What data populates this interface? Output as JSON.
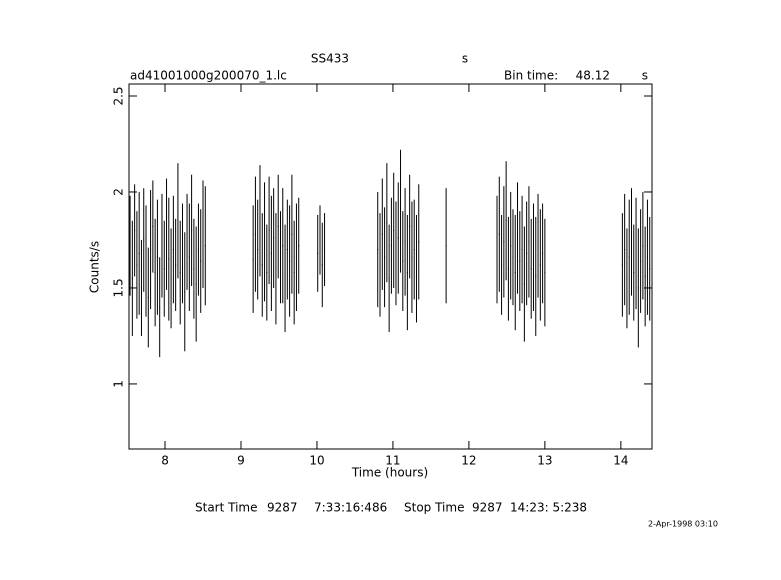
{
  "chart_data": {
    "type": "errorbar",
    "title": "SS433",
    "title_unit": "s",
    "file_name": "ad41001000g200070_1.lc",
    "bin_time_label": "Bin time:",
    "bin_time": 48.12,
    "bin_time_unit": "s",
    "x_label": "Time (hours)",
    "y_label": "Counts/s",
    "start_time": {
      "label": "Start Time",
      "day": "9287",
      "time": "7:33:16:486"
    },
    "stop_time": {
      "label": "Stop Time",
      "day": "9287",
      "time": "14:23: 5:238"
    },
    "date_stamp": "2-Apr-1998 03:10",
    "color": "#000000",
    "xlim": [
      7.526,
      14.41
    ],
    "ylim": [
      0.661,
      2.5625
    ],
    "xticks": [
      8,
      9,
      10,
      11,
      12,
      13,
      14
    ],
    "yticks": [
      1,
      1.5,
      2,
      2.5
    ],
    "x": [
      7.54,
      7.57,
      7.6,
      7.63,
      7.66,
      7.69,
      7.72,
      7.75,
      7.78,
      7.81,
      7.84,
      7.87,
      7.9,
      7.93,
      7.96,
      7.99,
      8.02,
      8.05,
      8.08,
      8.11,
      8.14,
      8.17,
      8.2,
      8.23,
      8.26,
      8.29,
      8.32,
      8.35,
      8.38,
      8.41,
      8.44,
      8.47,
      8.5,
      8.53,
      9.16,
      9.19,
      9.22,
      9.25,
      9.28,
      9.31,
      9.34,
      9.37,
      9.4,
      9.43,
      9.46,
      9.49,
      9.52,
      9.55,
      9.58,
      9.61,
      9.64,
      9.67,
      9.7,
      9.73,
      9.76,
      10.01,
      10.04,
      10.07,
      10.1,
      10.8,
      10.83,
      10.86,
      10.89,
      10.92,
      10.95,
      10.98,
      11.01,
      11.04,
      11.07,
      11.1,
      11.13,
      11.16,
      11.19,
      11.22,
      11.25,
      11.28,
      11.31,
      11.34,
      11.7,
      12.37,
      12.4,
      12.43,
      12.46,
      12.49,
      12.52,
      12.55,
      12.58,
      12.61,
      12.64,
      12.67,
      12.7,
      12.73,
      12.76,
      12.79,
      12.82,
      12.85,
      12.88,
      12.91,
      12.94,
      12.97,
      13.0,
      14.02,
      14.05,
      14.08,
      14.11,
      14.14,
      14.17,
      14.2,
      14.23,
      14.26,
      14.29,
      14.32,
      14.35,
      14.38
    ],
    "values": [
      1.72,
      1.55,
      1.8,
      1.62,
      1.68,
      1.5,
      1.75,
      1.64,
      1.45,
      1.7,
      1.82,
      1.58,
      1.66,
      1.4,
      1.72,
      1.6,
      1.78,
      1.65,
      1.55,
      1.7,
      1.62,
      1.85,
      1.58,
      1.68,
      1.48,
      1.74,
      1.66,
      1.8,
      1.6,
      1.52,
      1.7,
      1.64,
      1.78,
      1.72,
      1.65,
      1.78,
      1.7,
      1.85,
      1.62,
      1.74,
      1.58,
      1.8,
      1.68,
      1.76,
      1.6,
      1.82,
      1.66,
      1.72,
      1.55,
      1.7,
      1.64,
      1.78,
      1.58,
      1.66,
      1.72,
      1.68,
      1.75,
      1.62,
      1.7,
      1.7,
      1.62,
      1.78,
      1.66,
      1.84,
      1.55,
      1.72,
      1.8,
      1.68,
      1.76,
      1.9,
      1.64,
      1.74,
      1.58,
      1.82,
      1.66,
      1.7,
      1.6,
      1.74,
      1.72,
      1.7,
      1.78,
      1.62,
      1.74,
      1.85,
      1.6,
      1.72,
      1.66,
      1.58,
      1.76,
      1.64,
      1.7,
      1.52,
      1.68,
      1.74,
      1.6,
      1.66,
      1.56,
      1.72,
      1.62,
      1.68,
      1.58,
      1.62,
      1.7,
      1.55,
      1.66,
      1.74,
      1.58,
      1.68,
      1.5,
      1.64,
      1.72,
      1.56,
      1.66,
      1.6
    ],
    "errors": [
      0.26,
      0.3,
      0.24,
      0.28,
      0.32,
      0.25,
      0.27,
      0.29,
      0.26,
      0.31,
      0.24,
      0.28,
      0.3,
      0.26,
      0.27,
      0.25,
      0.29,
      0.32,
      0.26,
      0.28,
      0.24,
      0.3,
      0.27,
      0.26,
      0.31,
      0.25,
      0.28,
      0.29,
      0.26,
      0.3,
      0.24,
      0.27,
      0.28,
      0.31,
      0.28,
      0.3,
      0.26,
      0.29,
      0.27,
      0.31,
      0.25,
      0.28,
      0.3,
      0.26,
      0.29,
      0.27,
      0.24,
      0.3,
      0.28,
      0.26,
      0.29,
      0.31,
      0.27,
      0.28,
      0.25,
      0.2,
      0.18,
      0.22,
      0.19,
      0.3,
      0.27,
      0.29,
      0.26,
      0.31,
      0.28,
      0.25,
      0.3,
      0.27,
      0.29,
      0.32,
      0.26,
      0.28,
      0.3,
      0.27,
      0.29,
      0.26,
      0.28,
      0.3,
      0.3,
      0.28,
      0.3,
      0.26,
      0.29,
      0.31,
      0.27,
      0.28,
      0.25,
      0.3,
      0.29,
      0.26,
      0.28,
      0.3,
      0.27,
      0.29,
      0.26,
      0.28,
      0.31,
      0.27,
      0.29,
      0.26,
      0.28,
      0.27,
      0.29,
      0.26,
      0.3,
      0.28,
      0.25,
      0.29,
      0.31,
      0.27,
      0.28,
      0.26,
      0.3,
      0.27
    ]
  }
}
